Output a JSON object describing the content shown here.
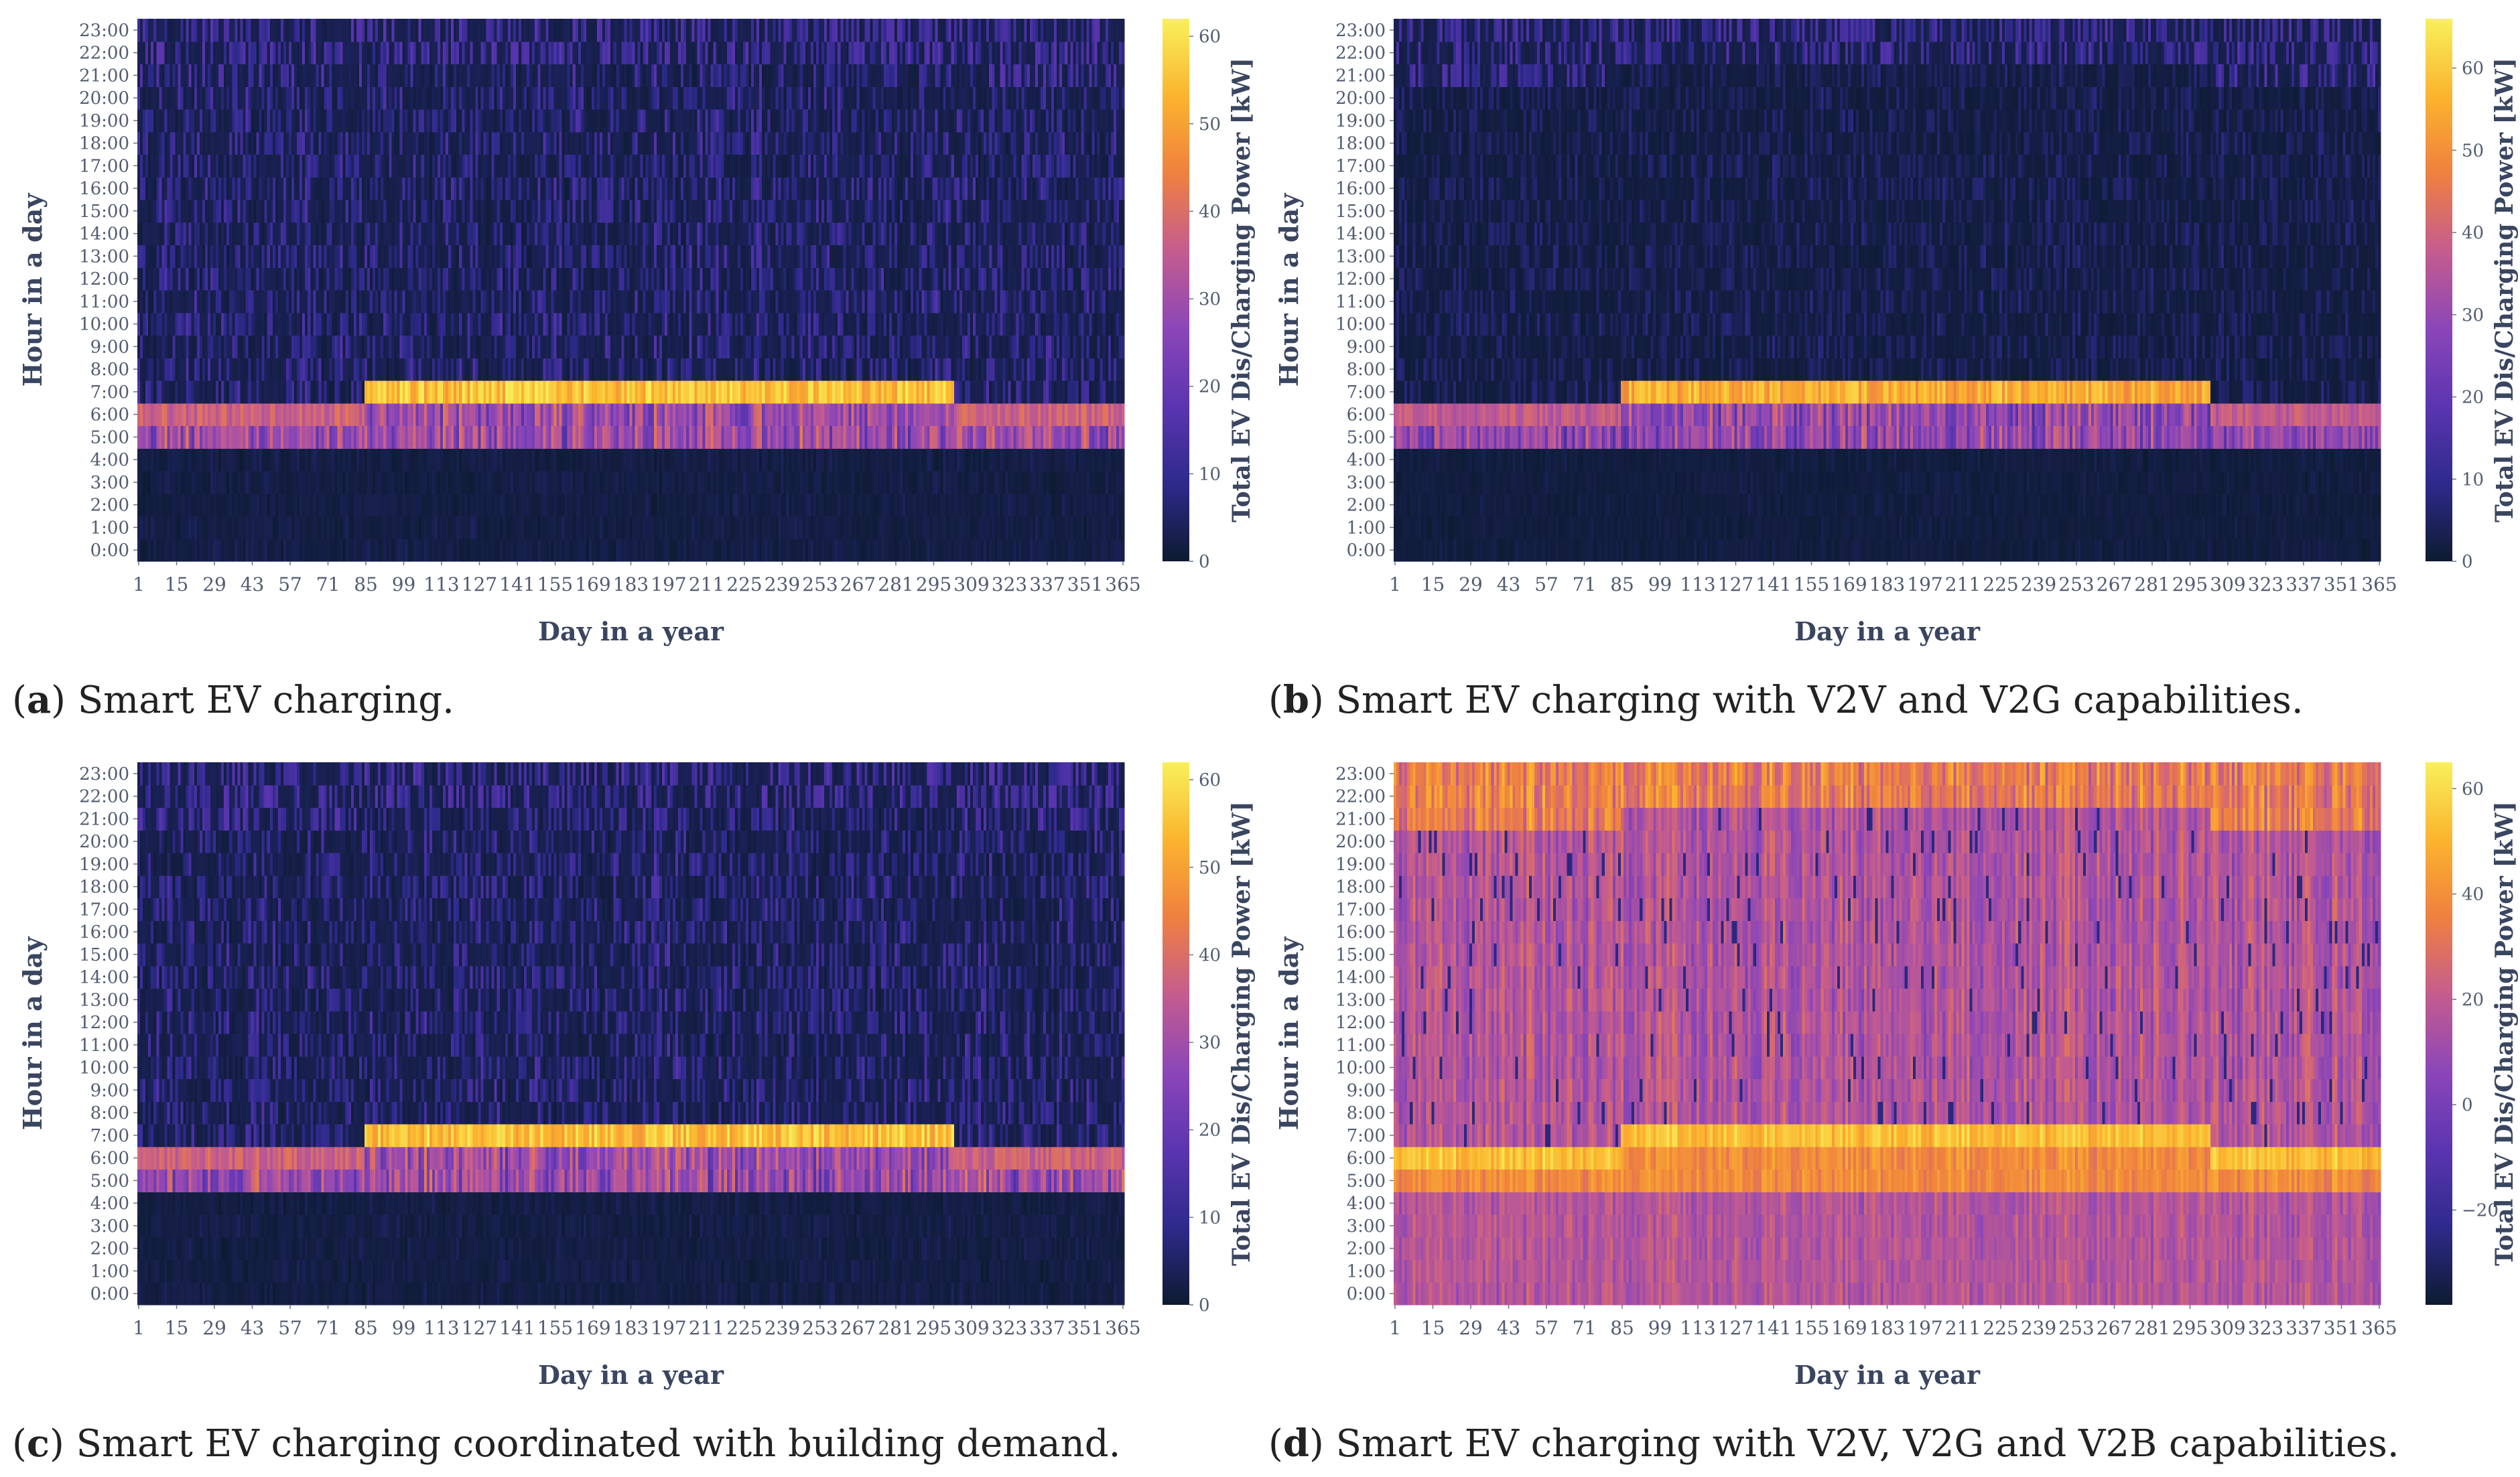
{
  "figure": {
    "panels": [
      {
        "id": "a",
        "letter": "a",
        "caption": "Smart EV charging."
      },
      {
        "id": "b",
        "letter": "b",
        "caption": "Smart EV charging with V2V and V2G capabilities."
      },
      {
        "id": "c",
        "letter": "c",
        "caption": "Smart EV charging coordinated with building demand."
      },
      {
        "id": "d",
        "letter": "d",
        "caption": "Smart EV charging with V2V, V2G and V2B capabilities."
      }
    ]
  },
  "chart_data": [
    {
      "panel": "a",
      "type": "heatmap",
      "xlabel": "Day in a year",
      "ylabel": "Hour in a day",
      "colorbar_label": "Total EV Dis/Charging Power [kW]",
      "x_range": [
        1,
        365
      ],
      "x_ticks": [
        "1",
        "15",
        "29",
        "43",
        "57",
        "71",
        "85",
        "99",
        "113",
        "127",
        "141",
        "155",
        "169",
        "183",
        "197",
        "211",
        "225",
        "239",
        "253",
        "267",
        "281",
        "295",
        "309",
        "323",
        "337",
        "351",
        "365"
      ],
      "y_ticks": [
        "0:00",
        "1:00",
        "2:00",
        "3:00",
        "4:00",
        "5:00",
        "6:00",
        "7:00",
        "8:00",
        "9:00",
        "10:00",
        "11:00",
        "12:00",
        "13:00",
        "14:00",
        "15:00",
        "16:00",
        "17:00",
        "18:00",
        "19:00",
        "20:00",
        "21:00",
        "22:00",
        "23:00"
      ],
      "colorbar_range": [
        0,
        62
      ],
      "colorbar_ticks": [
        "0",
        "10",
        "20",
        "30",
        "40",
        "50",
        "60"
      ],
      "colorscale": [
        "#0d1b30",
        "#2e2a8c",
        "#5b35b0",
        "#8b46b8",
        "#c45c8e",
        "#ef8040",
        "#fbb42e",
        "#f8f05a"
      ],
      "description_bands": [
        {
          "hours": "0-5",
          "level_kW": 5
        },
        {
          "hours": "5-7 (non-summer) / 5-8 (days 85-302)",
          "level_kW": 35
        },
        {
          "hours": "7-21 (8-22 in summer)",
          "level_kW": 12
        },
        {
          "hours": "21-24 (22-24 in summer)",
          "level_kW": 15
        }
      ]
    },
    {
      "panel": "b",
      "type": "heatmap",
      "xlabel": "Day in a year",
      "ylabel": "Hour in a day",
      "colorbar_label": "Total EV Dis/Charging Power [kW]",
      "x_range": [
        1,
        365
      ],
      "x_ticks": [
        "1",
        "15",
        "29",
        "43",
        "57",
        "71",
        "85",
        "99",
        "113",
        "127",
        "141",
        "155",
        "169",
        "183",
        "197",
        "211",
        "225",
        "239",
        "253",
        "267",
        "281",
        "295",
        "309",
        "323",
        "337",
        "351",
        "365"
      ],
      "y_ticks": [
        "0:00",
        "1:00",
        "2:00",
        "3:00",
        "4:00",
        "5:00",
        "6:00",
        "7:00",
        "8:00",
        "9:00",
        "10:00",
        "11:00",
        "12:00",
        "13:00",
        "14:00",
        "15:00",
        "16:00",
        "17:00",
        "18:00",
        "19:00",
        "20:00",
        "21:00",
        "22:00",
        "23:00"
      ],
      "colorbar_range": [
        0,
        66
      ],
      "colorbar_ticks": [
        "0",
        "10",
        "20",
        "30",
        "40",
        "50",
        "60"
      ],
      "colorscale": [
        "#0d1b30",
        "#2e2a8c",
        "#5b35b0",
        "#8b46b8",
        "#c45c8e",
        "#ef8040",
        "#fbb42e",
        "#f8f05a"
      ]
    },
    {
      "panel": "c",
      "type": "heatmap",
      "xlabel": "Day in a year",
      "ylabel": "Hour in a day",
      "colorbar_label": "Total EV Dis/Charging Power [kW]",
      "x_range": [
        1,
        365
      ],
      "x_ticks": [
        "1",
        "15",
        "29",
        "43",
        "57",
        "71",
        "85",
        "99",
        "113",
        "127",
        "141",
        "155",
        "169",
        "183",
        "197",
        "211",
        "225",
        "239",
        "253",
        "267",
        "281",
        "295",
        "309",
        "323",
        "337",
        "351",
        "365"
      ],
      "y_ticks": [
        "0:00",
        "1:00",
        "2:00",
        "3:00",
        "4:00",
        "5:00",
        "6:00",
        "7:00",
        "8:00",
        "9:00",
        "10:00",
        "11:00",
        "12:00",
        "13:00",
        "14:00",
        "15:00",
        "16:00",
        "17:00",
        "18:00",
        "19:00",
        "20:00",
        "21:00",
        "22:00",
        "23:00"
      ],
      "colorbar_range": [
        0,
        62
      ],
      "colorbar_ticks": [
        "0",
        "10",
        "20",
        "30",
        "40",
        "50",
        "60"
      ],
      "colorscale": [
        "#0d1b30",
        "#2e2a8c",
        "#5b35b0",
        "#8b46b8",
        "#c45c8e",
        "#ef8040",
        "#fbb42e",
        "#f8f05a"
      ]
    },
    {
      "panel": "d",
      "type": "heatmap",
      "xlabel": "Day in a year",
      "ylabel": "Hour in a day",
      "colorbar_label": "Total EV Dis/Charging Power [kW]",
      "x_range": [
        1,
        365
      ],
      "x_ticks": [
        "1",
        "15",
        "29",
        "43",
        "57",
        "71",
        "85",
        "99",
        "113",
        "127",
        "141",
        "155",
        "169",
        "183",
        "197",
        "211",
        "225",
        "239",
        "253",
        "267",
        "281",
        "295",
        "309",
        "323",
        "337",
        "351",
        "365"
      ],
      "y_ticks": [
        "0:00",
        "1:00",
        "2:00",
        "3:00",
        "4:00",
        "5:00",
        "6:00",
        "7:00",
        "8:00",
        "9:00",
        "10:00",
        "11:00",
        "12:00",
        "13:00",
        "14:00",
        "15:00",
        "16:00",
        "17:00",
        "18:00",
        "19:00",
        "20:00",
        "21:00",
        "22:00",
        "23:00"
      ],
      "colorbar_range": [
        -38,
        65
      ],
      "colorbar_ticks": [
        "−20",
        "0",
        "20",
        "40",
        "60"
      ],
      "colorscale": [
        "#0d1b30",
        "#2e2a8c",
        "#5b35b0",
        "#8b46b8",
        "#c45c8e",
        "#ef8040",
        "#fbb42e",
        "#f8f05a"
      ]
    }
  ]
}
